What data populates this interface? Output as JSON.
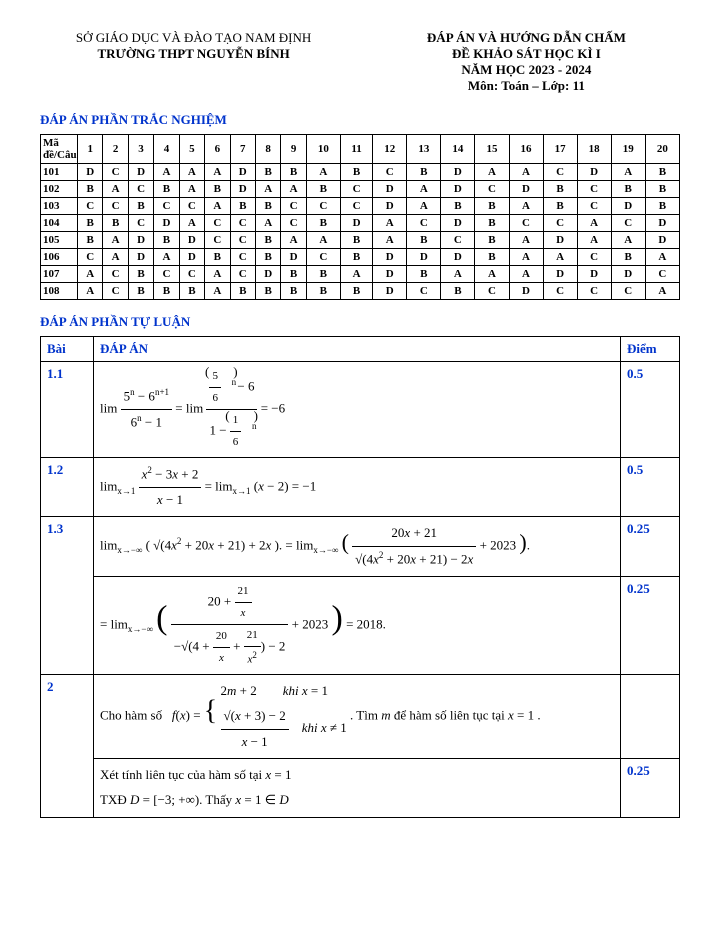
{
  "header": {
    "left1": "SỞ GIÁO DỤC VÀ ĐÀO TẠO NAM ĐỊNH",
    "left2": "TRƯỜNG THPT NGUYỄN BÍNH",
    "right1": "ĐÁP ÁN VÀ HƯỚNG DẪN CHẤM",
    "right2": "ĐỀ KHẢO SÁT HỌC KÌ I",
    "right3": "NĂM HỌC 2023 - 2024",
    "right4": "Môn: Toán   – Lớp: 11"
  },
  "section1": "ĐÁP ÁN PHẦN TRẮC NGHIỆM",
  "section2": "ĐÁP ÁN PHẦN TỰ LUẬN",
  "mc": {
    "head0": "Mã đề/Câu",
    "cols": [
      "1",
      "2",
      "3",
      "4",
      "5",
      "6",
      "7",
      "8",
      "9",
      "10",
      "11",
      "12",
      "13",
      "14",
      "15",
      "16",
      "17",
      "18",
      "19",
      "20"
    ],
    "rows": [
      {
        "id": "101",
        "v": [
          "D",
          "C",
          "D",
          "A",
          "A",
          "A",
          "D",
          "B",
          "B",
          "A",
          "B",
          "C",
          "B",
          "D",
          "A",
          "A",
          "C",
          "D",
          "A",
          "B"
        ]
      },
      {
        "id": "102",
        "v": [
          "B",
          "A",
          "C",
          "B",
          "A",
          "B",
          "D",
          "A",
          "A",
          "B",
          "C",
          "D",
          "A",
          "D",
          "C",
          "D",
          "B",
          "C",
          "B",
          "B"
        ]
      },
      {
        "id": "103",
        "v": [
          "C",
          "C",
          "B",
          "C",
          "C",
          "A",
          "B",
          "B",
          "C",
          "C",
          "C",
          "D",
          "A",
          "B",
          "B",
          "A",
          "B",
          "C",
          "D",
          "B"
        ]
      },
      {
        "id": "104",
        "v": [
          "B",
          "B",
          "C",
          "D",
          "A",
          "C",
          "C",
          "A",
          "C",
          "B",
          "D",
          "A",
          "C",
          "D",
          "B",
          "C",
          "C",
          "A",
          "C",
          "D"
        ]
      },
      {
        "id": "105",
        "v": [
          "B",
          "A",
          "D",
          "B",
          "D",
          "C",
          "C",
          "B",
          "A",
          "A",
          "B",
          "A",
          "B",
          "C",
          "B",
          "A",
          "D",
          "A",
          "A",
          "D"
        ]
      },
      {
        "id": "106",
        "v": [
          "C",
          "A",
          "D",
          "A",
          "D",
          "B",
          "C",
          "B",
          "D",
          "C",
          "B",
          "D",
          "D",
          "D",
          "B",
          "A",
          "A",
          "C",
          "B",
          "A"
        ]
      },
      {
        "id": "107",
        "v": [
          "A",
          "C",
          "B",
          "C",
          "C",
          "A",
          "C",
          "D",
          "B",
          "B",
          "A",
          "D",
          "B",
          "A",
          "A",
          "A",
          "D",
          "D",
          "D",
          "C"
        ]
      },
      {
        "id": "108",
        "v": [
          "A",
          "C",
          "B",
          "B",
          "B",
          "A",
          "B",
          "B",
          "B",
          "B",
          "B",
          "D",
          "C",
          "B",
          "C",
          "D",
          "C",
          "C",
          "C",
          "A"
        ]
      }
    ]
  },
  "essay": {
    "headBai": "Bài",
    "headDA": "ĐÁP ÁN",
    "headDiem": "Điểm",
    "rows": [
      {
        "bai": "1.1",
        "diem": "0.5"
      },
      {
        "bai": "1.2",
        "diem": "0.5"
      },
      {
        "bai": "1.3",
        "diem1": "0.25",
        "diem2": "0.25"
      },
      {
        "bai": "2",
        "diem": "0.25"
      }
    ]
  },
  "style": {
    "brandColor": "#0033cc",
    "textColor": "#000000",
    "bg": "#ffffff",
    "fontBase": 13,
    "fontTable": 11
  }
}
